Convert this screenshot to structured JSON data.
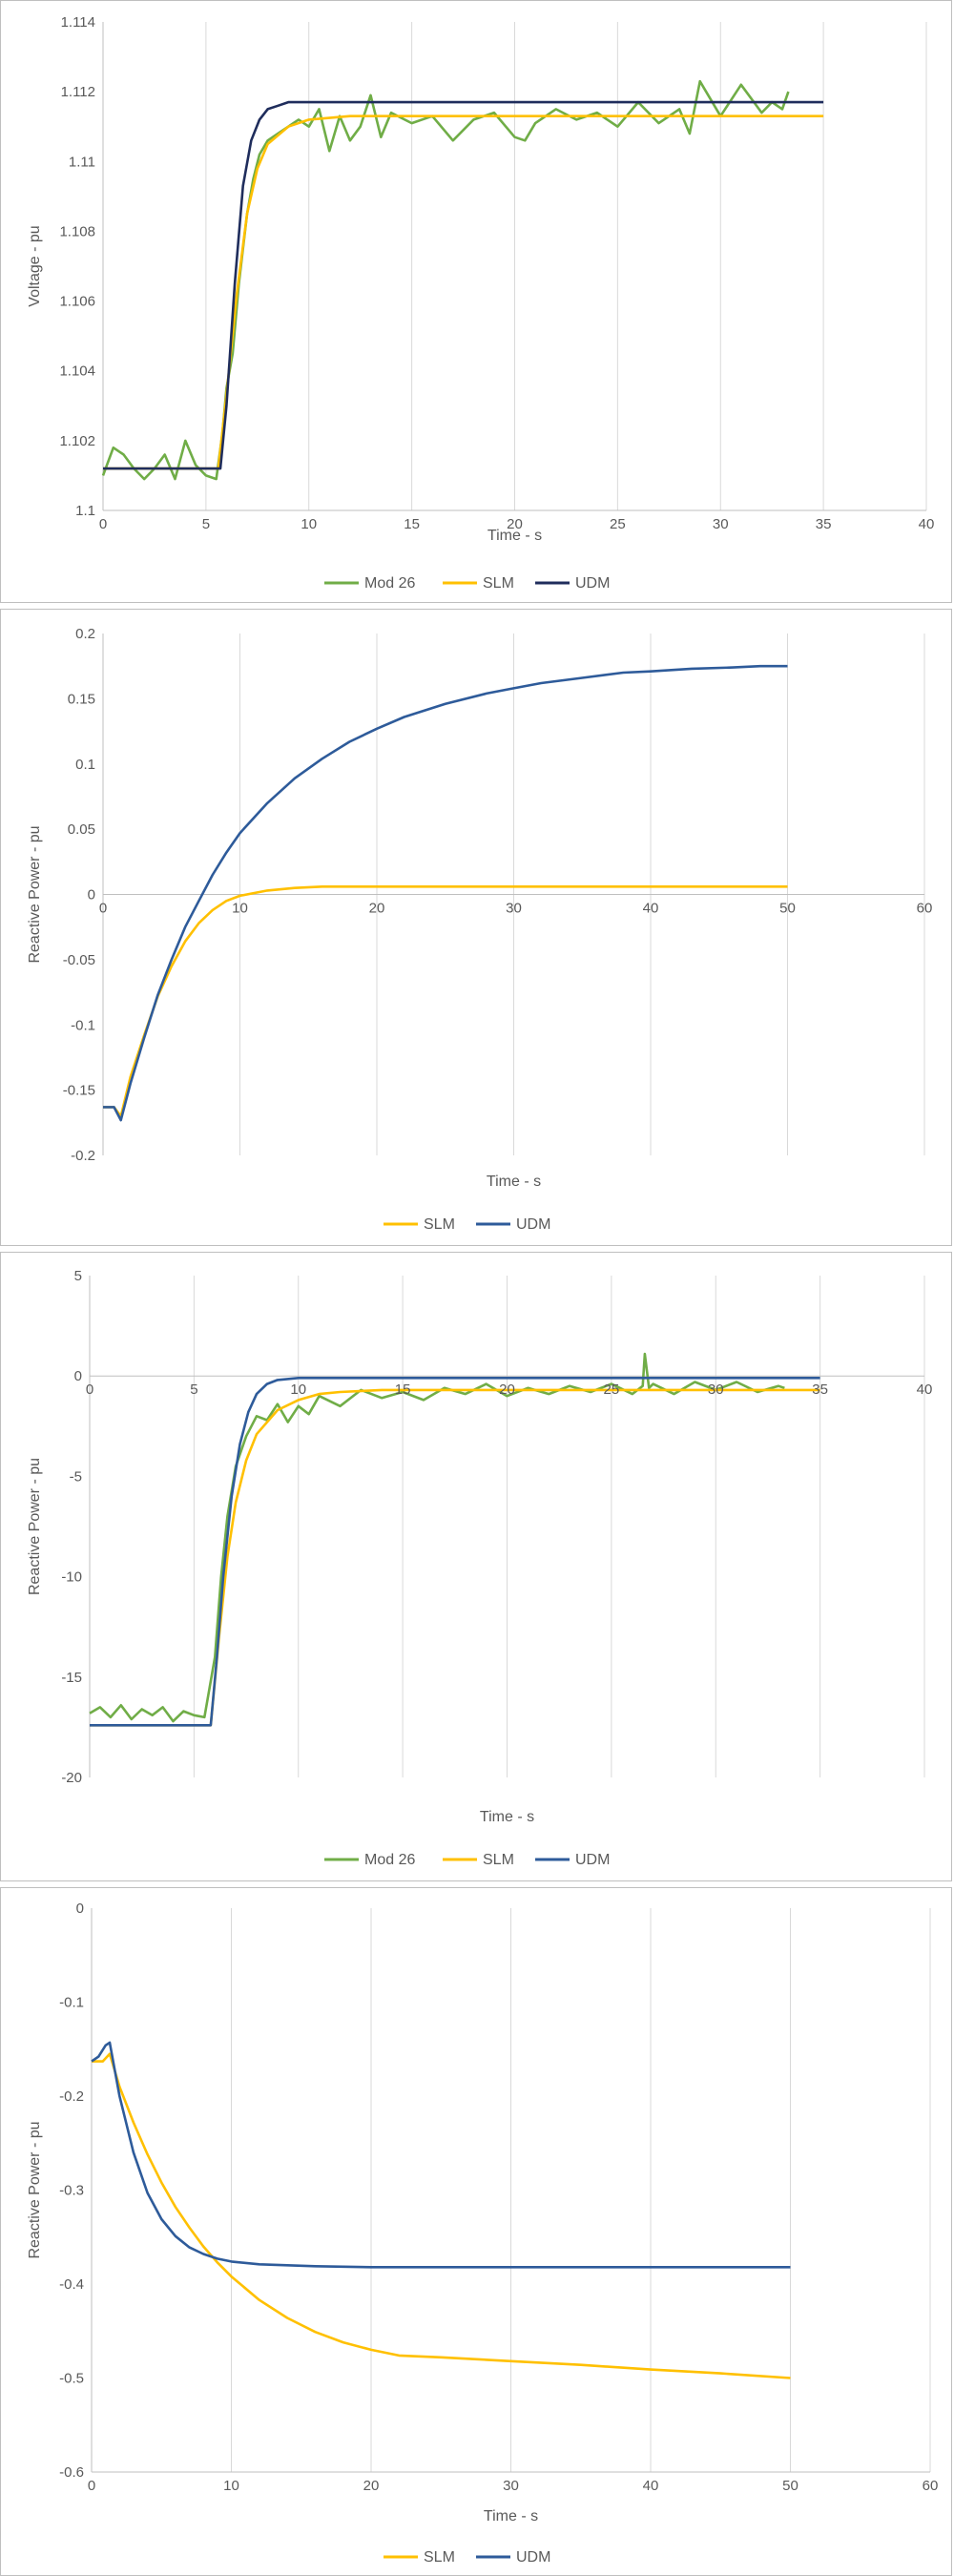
{
  "chart_data": [
    {
      "type": "line",
      "xlabel": "Time - s",
      "ylabel": "Voltage - pu",
      "xlim": [
        0,
        40
      ],
      "ylim": [
        1.1,
        1.114
      ],
      "x_ticks": [
        "0",
        "5",
        "10",
        "15",
        "20",
        "25",
        "30",
        "35",
        "40"
      ],
      "y_ticks": [
        "1.1",
        "1.102",
        "1.104",
        "1.106",
        "1.108",
        "1.11",
        "1.112",
        "1.114"
      ],
      "grid": "vertical",
      "legend": "bottom",
      "series": [
        {
          "name": "Mod 26",
          "color": "#70ad47",
          "x": [
            0,
            0.5,
            1,
            1.5,
            2,
            2.5,
            3,
            3.5,
            4,
            4.5,
            5,
            5.5,
            5.8,
            6,
            6.3,
            6.6,
            7,
            7.3,
            7.6,
            8,
            8.5,
            9,
            9.5,
            10,
            10.5,
            11,
            11.5,
            12,
            12.5,
            13,
            13.5,
            14,
            15,
            16,
            17,
            18,
            19,
            20,
            20.5,
            21,
            22,
            23,
            24,
            25,
            26,
            27,
            28,
            28.5,
            29,
            30,
            31,
            32,
            32.5,
            33,
            33.3
          ],
          "y": [
            1.101,
            1.1018,
            1.1016,
            1.1012,
            1.1009,
            1.1012,
            1.1016,
            1.1009,
            1.102,
            1.1013,
            1.101,
            1.1009,
            1.1022,
            1.1035,
            1.1045,
            1.1065,
            1.1085,
            1.1095,
            1.1102,
            1.1106,
            1.1108,
            1.111,
            1.1112,
            1.111,
            1.1115,
            1.1103,
            1.1113,
            1.1106,
            1.111,
            1.1119,
            1.1107,
            1.1114,
            1.1111,
            1.1113,
            1.1106,
            1.1112,
            1.1114,
            1.1107,
            1.1106,
            1.1111,
            1.1115,
            1.1112,
            1.1114,
            1.111,
            1.1117,
            1.1111,
            1.1115,
            1.1108,
            1.1123,
            1.1113,
            1.1122,
            1.1114,
            1.1117,
            1.1115,
            1.112
          ]
        },
        {
          "name": "SLM",
          "color": "#ffc000",
          "x": [
            0,
            5,
            5.6,
            6,
            6.5,
            7,
            7.5,
            8,
            9,
            10,
            12,
            15,
            20,
            25,
            30,
            35
          ],
          "y": [
            1.1012,
            1.1012,
            1.1012,
            1.1033,
            1.1062,
            1.1085,
            1.1098,
            1.1105,
            1.111,
            1.1112,
            1.1113,
            1.1113,
            1.1113,
            1.1113,
            1.1113,
            1.1113
          ]
        },
        {
          "name": "UDM",
          "color": "#1f2d5c",
          "x": [
            0,
            5,
            5.7,
            6,
            6.4,
            6.8,
            7.2,
            7.6,
            8,
            8.5,
            9,
            10,
            12,
            15,
            20,
            25,
            30,
            35
          ],
          "y": [
            1.1012,
            1.1012,
            1.1012,
            1.103,
            1.1065,
            1.1093,
            1.1106,
            1.1112,
            1.1115,
            1.1116,
            1.1117,
            1.1117,
            1.1117,
            1.1117,
            1.1117,
            1.1117,
            1.1117,
            1.1117
          ]
        }
      ]
    },
    {
      "type": "line",
      "xlabel": "Time - s",
      "ylabel": "Reactive Power - pu",
      "xlim": [
        0,
        60
      ],
      "ylim": [
        -0.2,
        0.2
      ],
      "x_ticks": [
        "0",
        "10",
        "20",
        "30",
        "40",
        "50",
        "60"
      ],
      "y_ticks": [
        "-0.2",
        "-0.15",
        "-0.1",
        "-0.05",
        "0",
        "0.05",
        "0.1",
        "0.15",
        "0.2"
      ],
      "grid": "vertical",
      "legend": "bottom",
      "series": [
        {
          "name": "SLM",
          "color": "#ffc000",
          "x": [
            0,
            0.8,
            1.3,
            2,
            3,
            4,
            5,
            6,
            7,
            8,
            9,
            10,
            12,
            14,
            16,
            20,
            25,
            30,
            40,
            50
          ],
          "y": [
            -0.163,
            -0.163,
            -0.17,
            -0.14,
            -0.108,
            -0.078,
            -0.055,
            -0.036,
            -0.022,
            -0.012,
            -0.005,
            -0.001,
            0.003,
            0.005,
            0.006,
            0.006,
            0.006,
            0.006,
            0.006,
            0.006
          ]
        },
        {
          "name": "UDM",
          "color": "#2e5b9a",
          "x": [
            0,
            0.8,
            1.3,
            2,
            3,
            4,
            5,
            6,
            7,
            8,
            9,
            10,
            12,
            14,
            16,
            18,
            20,
            22,
            25,
            28,
            30,
            32,
            35,
            38,
            40,
            43,
            46,
            48,
            50
          ],
          "y": [
            -0.163,
            -0.163,
            -0.173,
            -0.145,
            -0.11,
            -0.077,
            -0.05,
            -0.025,
            -0.005,
            0.015,
            0.032,
            0.047,
            0.07,
            0.089,
            0.104,
            0.117,
            0.127,
            0.136,
            0.146,
            0.154,
            0.158,
            0.162,
            0.166,
            0.17,
            0.171,
            0.173,
            0.174,
            0.175,
            0.175
          ]
        }
      ]
    },
    {
      "type": "line",
      "xlabel": "Time - s",
      "ylabel": "Reactive Power - pu",
      "xlim": [
        0,
        40
      ],
      "ylim": [
        -20,
        5
      ],
      "x_ticks": [
        "0",
        "5",
        "10",
        "15",
        "20",
        "25",
        "30",
        "35",
        "40"
      ],
      "y_ticks": [
        "-20",
        "-15",
        "-10",
        "-5",
        "0",
        "5"
      ],
      "grid": "vertical",
      "legend": "bottom",
      "series": [
        {
          "name": "Mod 26",
          "color": "#70ad47",
          "x": [
            0,
            0.5,
            1,
            1.5,
            2,
            2.5,
            3,
            3.5,
            4,
            4.5,
            5,
            5.5,
            6,
            6.3,
            6.6,
            7,
            7.5,
            8,
            8.5,
            9,
            9.5,
            10,
            10.5,
            11,
            12,
            13,
            14,
            15,
            16,
            17,
            18,
            19,
            20,
            21,
            22,
            23,
            24,
            25,
            26,
            26.5,
            26.6,
            26.8,
            27,
            28,
            29,
            30,
            31,
            32,
            33,
            33.3
          ],
          "y": [
            -16.8,
            -16.5,
            -17,
            -16.4,
            -17.1,
            -16.6,
            -16.9,
            -16.5,
            -17.2,
            -16.7,
            -16.9,
            -17,
            -14,
            -10,
            -7,
            -4.5,
            -3,
            -2,
            -2.2,
            -1.4,
            -2.3,
            -1.5,
            -1.9,
            -1,
            -1.5,
            -0.7,
            -1.1,
            -0.8,
            -1.2,
            -0.6,
            -0.9,
            -0.4,
            -1,
            -0.6,
            -0.9,
            -0.5,
            -0.8,
            -0.4,
            -0.9,
            -0.5,
            1.1,
            -0.6,
            -0.4,
            -0.9,
            -0.3,
            -0.7,
            -0.3,
            -0.8,
            -0.5,
            -0.6
          ]
        },
        {
          "name": "SLM",
          "color": "#ffc000",
          "x": [
            0,
            5,
            5.8,
            6.2,
            6.6,
            7,
            7.5,
            8,
            9,
            10,
            11,
            12,
            14,
            16,
            20,
            25,
            30,
            35
          ],
          "y": [
            -17.4,
            -17.4,
            -17.4,
            -13,
            -9,
            -6.3,
            -4.2,
            -2.9,
            -1.7,
            -1.2,
            -0.9,
            -0.8,
            -0.7,
            -0.7,
            -0.7,
            -0.7,
            -0.7,
            -0.7
          ]
        },
        {
          "name": "UDM",
          "color": "#2e5b9a",
          "x": [
            0,
            5,
            5.8,
            6.1,
            6.4,
            6.8,
            7.2,
            7.6,
            8,
            8.5,
            9,
            10,
            12,
            15,
            20,
            25,
            30,
            35
          ],
          "y": [
            -17.4,
            -17.4,
            -17.4,
            -14,
            -10,
            -6,
            -3.4,
            -1.8,
            -0.9,
            -0.4,
            -0.2,
            -0.1,
            -0.1,
            -0.1,
            -0.1,
            -0.1,
            -0.1,
            -0.1
          ]
        }
      ]
    },
    {
      "type": "line",
      "xlabel": "Time - s",
      "ylabel": "Reactive Power - pu",
      "xlim": [
        0,
        60
      ],
      "ylim": [
        -0.6,
        0
      ],
      "x_ticks": [
        "0",
        "10",
        "20",
        "30",
        "40",
        "50",
        "60"
      ],
      "y_ticks": [
        "-0.6",
        "-0.5",
        "-0.4",
        "-0.3",
        "-0.2",
        "-0.1",
        "0"
      ],
      "grid": "vertical",
      "legend": "bottom",
      "series": [
        {
          "name": "SLM",
          "color": "#ffc000",
          "x": [
            0,
            0.8,
            1.3,
            2,
            3,
            4,
            5,
            6,
            7,
            8,
            9,
            10,
            12,
            14,
            16,
            18,
            20,
            22,
            25,
            30,
            35,
            40,
            45,
            50
          ],
          "y": [
            -0.163,
            -0.163,
            -0.155,
            -0.19,
            -0.228,
            -0.262,
            -0.292,
            -0.318,
            -0.34,
            -0.36,
            -0.377,
            -0.392,
            -0.417,
            -0.436,
            -0.451,
            -0.462,
            -0.47,
            -0.476,
            -0.478,
            -0.482,
            -0.486,
            -0.491,
            -0.495,
            -0.5
          ]
        },
        {
          "name": "UDM",
          "color": "#2e5b9a",
          "x": [
            0,
            0.5,
            1,
            1.3,
            2,
            3,
            4,
            5,
            6,
            7,
            8,
            9,
            10,
            12,
            14,
            16,
            20,
            25,
            30,
            40,
            50
          ],
          "y": [
            -0.163,
            -0.158,
            -0.146,
            -0.143,
            -0.2,
            -0.26,
            -0.303,
            -0.331,
            -0.349,
            -0.361,
            -0.368,
            -0.373,
            -0.376,
            -0.379,
            -0.38,
            -0.381,
            -0.382,
            -0.382,
            -0.382,
            -0.382,
            -0.382
          ]
        }
      ]
    }
  ]
}
